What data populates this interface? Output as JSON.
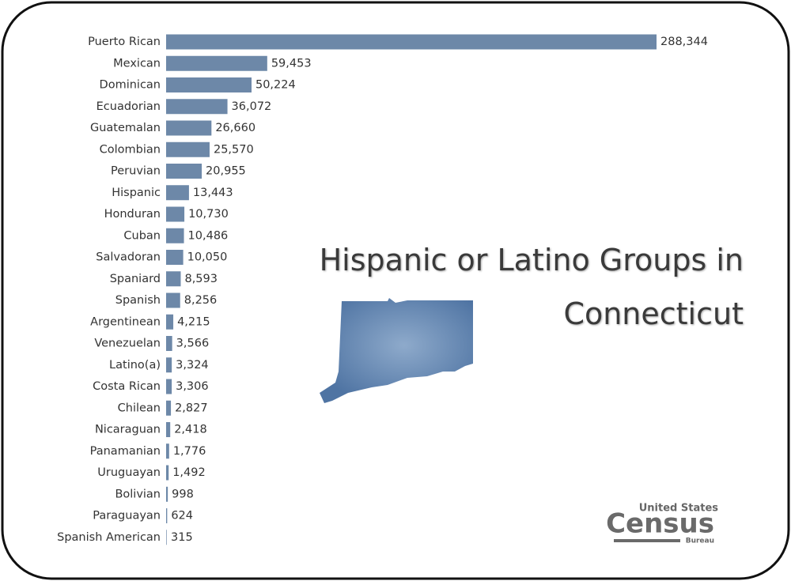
{
  "chart_data": {
    "type": "bar",
    "orientation": "horizontal",
    "title": "Hispanic or Latino Groups in Connecticut",
    "categories": [
      "Puerto Rican",
      "Mexican",
      "Dominican",
      "Ecuadorian",
      "Guatemalan",
      "Colombian",
      "Peruvian",
      "Hispanic",
      "Honduran",
      "Cuban",
      "Salvadoran",
      "Spaniard",
      "Spanish",
      "Argentinean",
      "Venezuelan",
      "Latino(a)",
      "Costa Rican",
      "Chilean",
      "Nicaraguan",
      "Panamanian",
      "Uruguayan",
      "Bolivian",
      "Paraguayan",
      "Spanish American"
    ],
    "values": [
      288344,
      59453,
      50224,
      36072,
      26660,
      25570,
      20955,
      13443,
      10730,
      10486,
      10050,
      8593,
      8256,
      4215,
      3566,
      3324,
      3306,
      2827,
      2418,
      1776,
      1492,
      998,
      624,
      315
    ],
    "value_labels": [
      "288,344",
      "59,453",
      "50,224",
      "36,072",
      "26,660",
      "25,570",
      "20,955",
      "13,443",
      "10,730",
      "10,486",
      "10,050",
      "8,593",
      "8,256",
      "4,215",
      "3,566",
      "3,324",
      "3,306",
      "2,827",
      "2,418",
      "1,776",
      "1,492",
      "998",
      "624",
      "315"
    ],
    "color": "#6d88a8"
  },
  "logo": {
    "line1": "United States",
    "line2": "Census",
    "line3": "Bureau"
  }
}
